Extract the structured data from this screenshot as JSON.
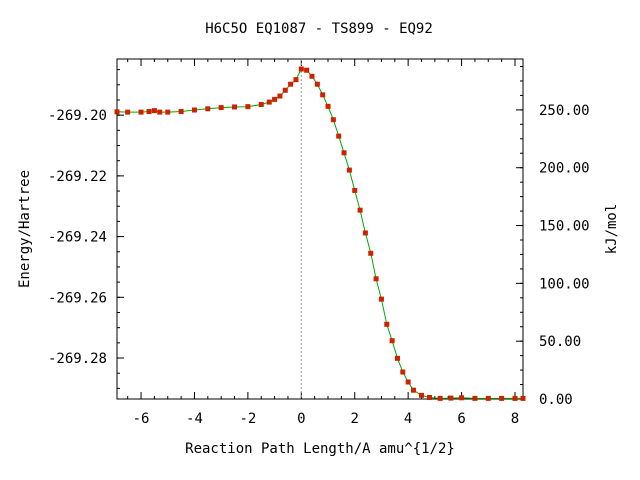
{
  "chart_data": {
    "type": "line",
    "title": "H6C5O   EQ1087 - TS899 - EQ92",
    "xlabel": "Reaction Path Length/A amu^{1/2}",
    "ylabel": "Energy/Hartree",
    "y2label": "kJ/mol",
    "xlim": [
      -6.9,
      8.3
    ],
    "ylim": [
      -269.2935,
      -269.1815
    ],
    "y2lim": [
      0.0,
      294.0
    ],
    "x_ticks": [
      -6,
      -4,
      -2,
      0,
      2,
      4,
      6,
      8
    ],
    "x_tick_labels": [
      "-6",
      "-4",
      "-2",
      "0",
      "2",
      "4",
      "6",
      "8"
    ],
    "y_ticks": [
      -269.2,
      -269.22,
      -269.24,
      -269.26,
      -269.28
    ],
    "y_tick_labels": [
      "-269.20",
      "-269.22",
      "-269.24",
      "-269.26",
      "-269.28"
    ],
    "y2_ticks": [
      0,
      50,
      100,
      150,
      200,
      250
    ],
    "y2_tick_labels": [
      "0.00",
      "50.00",
      "100.00",
      "150.00",
      "200.00",
      "250.00"
    ],
    "ts_marker_x": 0,
    "grid": false,
    "colors": {
      "line": "#00aa00",
      "marker": "#cc2200",
      "ts_line": "#999999"
    },
    "series": [
      {
        "x": [
          -6.9,
          -6.5,
          -6.0,
          -5.7,
          -5.5,
          -5.3,
          -5.0,
          -4.5,
          -4.0,
          -3.5,
          -3.0,
          -2.5,
          -2.0,
          -1.5,
          -1.2,
          -1.0,
          -0.8,
          -0.6,
          -0.4,
          -0.2,
          0.0,
          0.2,
          0.4,
          0.6,
          0.8,
          1.0,
          1.2,
          1.4,
          1.6,
          1.8,
          2.0,
          2.2,
          2.4,
          2.6,
          2.8,
          3.0,
          3.2,
          3.4,
          3.6,
          3.8,
          4.0,
          4.2,
          4.5,
          4.8,
          5.2,
          5.6,
          6.0,
          6.5,
          7.0,
          7.5,
          8.0,
          8.3
        ],
        "y": [
          -269.1989,
          -269.199,
          -269.199,
          -269.1988,
          -269.1985,
          -269.199,
          -269.199,
          -269.1988,
          -269.1983,
          -269.1979,
          -269.1975,
          -269.1973,
          -269.1972,
          -269.1965,
          -269.1957,
          -269.1948,
          -269.1937,
          -269.1918,
          -269.1898,
          -269.1883,
          -269.1848,
          -269.1852,
          -269.1872,
          -269.1898,
          -269.1933,
          -269.1971,
          -269.2015,
          -269.2069,
          -269.2124,
          -269.2181,
          -269.2248,
          -269.2313,
          -269.2388,
          -269.2455,
          -269.2539,
          -269.2606,
          -269.2689,
          -269.2743,
          -269.2801,
          -269.2846,
          -269.2879,
          -269.2906,
          -269.2923,
          -269.293,
          -269.2933,
          -269.2932,
          -269.2931,
          -269.2933,
          -269.2933,
          -269.2933,
          -269.2933,
          -269.2933
        ]
      }
    ]
  }
}
